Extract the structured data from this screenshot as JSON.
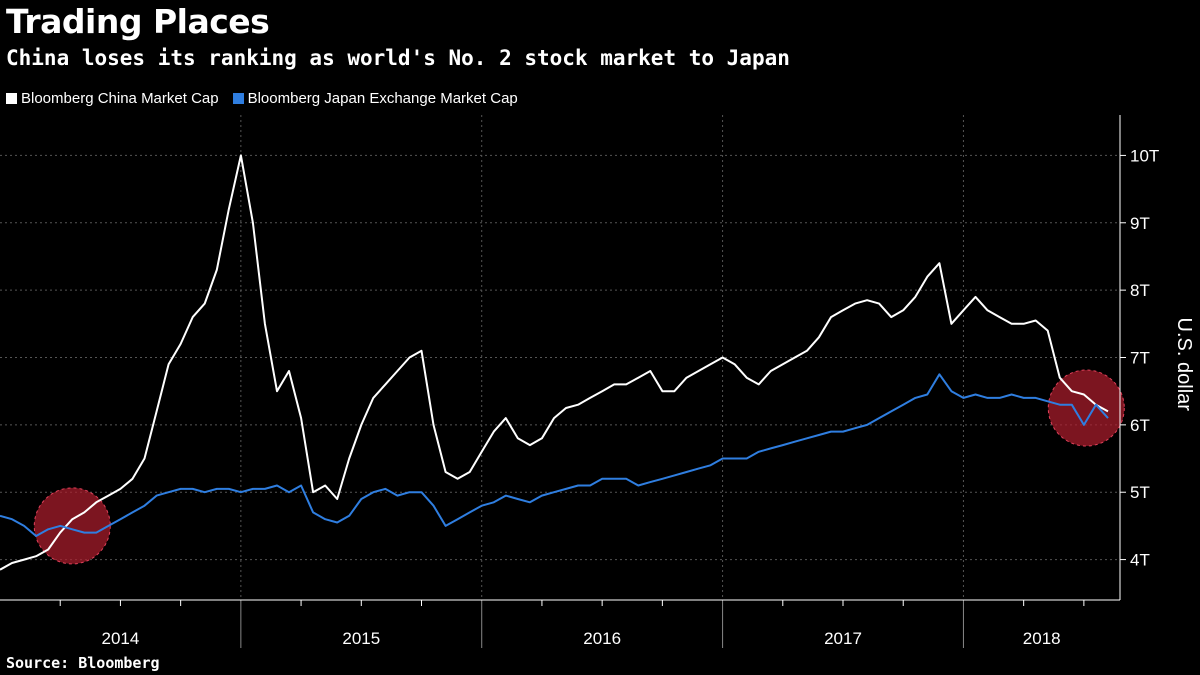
{
  "header": {
    "title": "Trading Places",
    "subtitle": "China loses its ranking as world's No. 2 stock market to Japan"
  },
  "footer": {
    "source": "Source: Bloomberg"
  },
  "chart_data": {
    "type": "line",
    "title": "Trading Places",
    "subtitle": "China loses its ranking as world's No. 2 stock market to Japan",
    "xlabel": "",
    "ylabel": "U.S. dollar",
    "xlim": [
      2014.0,
      2018.65
    ],
    "ylim": [
      3.4,
      10.6
    ],
    "x_ticks": [
      2014,
      2015,
      2016,
      2017,
      2018
    ],
    "x_tick_labels": [
      "2014",
      "2015",
      "2016",
      "2017",
      "2018"
    ],
    "y_ticks": [
      4,
      5,
      6,
      7,
      8,
      9,
      10
    ],
    "y_tick_labels": [
      "4T",
      "5T",
      "6T",
      "7T",
      "8T",
      "9T",
      "10T"
    ],
    "grid": true,
    "legend_position": "top-left",
    "annotations": [
      {
        "type": "circle",
        "x": 2014.3,
        "y": 4.5,
        "color": "#b01e2d"
      },
      {
        "type": "circle",
        "x": 2018.51,
        "y": 6.25,
        "color": "#b01e2d"
      }
    ],
    "series": [
      {
        "name": "Bloomberg China Market Cap",
        "color": "#ffffff",
        "x": [
          2014.0,
          2014.05,
          2014.1,
          2014.15,
          2014.2,
          2014.25,
          2014.3,
          2014.35,
          2014.4,
          2014.45,
          2014.5,
          2014.55,
          2014.6,
          2014.65,
          2014.7,
          2014.75,
          2014.8,
          2014.85,
          2014.9,
          2014.95,
          2015.0,
          2015.05,
          2015.1,
          2015.15,
          2015.2,
          2015.25,
          2015.3,
          2015.35,
          2015.4,
          2015.45,
          2015.5,
          2015.55,
          2015.6,
          2015.65,
          2015.7,
          2015.75,
          2015.8,
          2015.85,
          2015.9,
          2015.95,
          2016.0,
          2016.05,
          2016.1,
          2016.15,
          2016.2,
          2016.25,
          2016.3,
          2016.35,
          2016.4,
          2016.45,
          2016.5,
          2016.55,
          2016.6,
          2016.65,
          2016.7,
          2016.75,
          2016.8,
          2016.85,
          2016.9,
          2016.95,
          2017.0,
          2017.05,
          2017.1,
          2017.15,
          2017.2,
          2017.25,
          2017.3,
          2017.35,
          2017.4,
          2017.45,
          2017.5,
          2017.55,
          2017.6,
          2017.65,
          2017.7,
          2017.75,
          2017.8,
          2017.85,
          2017.9,
          2017.95,
          2018.0,
          2018.05,
          2018.1,
          2018.15,
          2018.2,
          2018.25,
          2018.3,
          2018.35,
          2018.4,
          2018.45,
          2018.5,
          2018.55,
          2018.6
        ],
        "values": [
          3.85,
          3.95,
          4.0,
          4.05,
          4.15,
          4.4,
          4.6,
          4.7,
          4.85,
          4.95,
          5.05,
          5.2,
          5.5,
          6.2,
          6.9,
          7.2,
          7.6,
          7.8,
          8.3,
          9.2,
          10.0,
          9.0,
          7.5,
          6.5,
          6.8,
          6.1,
          5.0,
          5.1,
          4.9,
          5.5,
          6.0,
          6.4,
          6.6,
          6.8,
          7.0,
          7.1,
          6.0,
          5.3,
          5.2,
          5.3,
          5.6,
          5.9,
          6.1,
          5.8,
          5.7,
          5.8,
          6.1,
          6.25,
          6.3,
          6.4,
          6.5,
          6.6,
          6.6,
          6.7,
          6.8,
          6.5,
          6.5,
          6.7,
          6.8,
          6.9,
          7.0,
          6.9,
          6.7,
          6.6,
          6.8,
          6.9,
          7.0,
          7.1,
          7.3,
          7.6,
          7.7,
          7.8,
          7.85,
          7.8,
          7.6,
          7.7,
          7.9,
          8.2,
          8.4,
          7.5,
          7.7,
          7.9,
          7.7,
          7.6,
          7.5,
          7.5,
          7.55,
          7.4,
          6.7,
          6.5,
          6.45,
          6.3,
          6.2
        ]
      },
      {
        "name": "Bloomberg Japan Exchange Market Cap",
        "color": "#2f7ee0",
        "x": [
          2014.0,
          2014.05,
          2014.1,
          2014.15,
          2014.2,
          2014.25,
          2014.3,
          2014.35,
          2014.4,
          2014.45,
          2014.5,
          2014.55,
          2014.6,
          2014.65,
          2014.7,
          2014.75,
          2014.8,
          2014.85,
          2014.9,
          2014.95,
          2015.0,
          2015.05,
          2015.1,
          2015.15,
          2015.2,
          2015.25,
          2015.3,
          2015.35,
          2015.4,
          2015.45,
          2015.5,
          2015.55,
          2015.6,
          2015.65,
          2015.7,
          2015.75,
          2015.8,
          2015.85,
          2015.9,
          2015.95,
          2016.0,
          2016.05,
          2016.1,
          2016.15,
          2016.2,
          2016.25,
          2016.3,
          2016.35,
          2016.4,
          2016.45,
          2016.5,
          2016.55,
          2016.6,
          2016.65,
          2016.7,
          2016.75,
          2016.8,
          2016.85,
          2016.9,
          2016.95,
          2017.0,
          2017.05,
          2017.1,
          2017.15,
          2017.2,
          2017.25,
          2017.3,
          2017.35,
          2017.4,
          2017.45,
          2017.5,
          2017.55,
          2017.6,
          2017.65,
          2017.7,
          2017.75,
          2017.8,
          2017.85,
          2017.9,
          2017.95,
          2018.0,
          2018.05,
          2018.1,
          2018.15,
          2018.2,
          2018.25,
          2018.3,
          2018.35,
          2018.4,
          2018.45,
          2018.5,
          2018.55,
          2018.6
        ],
        "values": [
          4.65,
          4.6,
          4.5,
          4.35,
          4.45,
          4.5,
          4.45,
          4.4,
          4.4,
          4.5,
          4.6,
          4.7,
          4.8,
          4.95,
          5.0,
          5.05,
          5.05,
          5.0,
          5.05,
          5.05,
          5.0,
          5.05,
          5.05,
          5.1,
          5.0,
          5.1,
          4.7,
          4.6,
          4.55,
          4.65,
          4.9,
          5.0,
          5.05,
          4.95,
          5.0,
          5.0,
          4.8,
          4.5,
          4.6,
          4.7,
          4.8,
          4.85,
          4.95,
          4.9,
          4.85,
          4.95,
          5.0,
          5.05,
          5.1,
          5.1,
          5.2,
          5.2,
          5.2,
          5.1,
          5.15,
          5.2,
          5.25,
          5.3,
          5.35,
          5.4,
          5.5,
          5.5,
          5.5,
          5.6,
          5.65,
          5.7,
          5.75,
          5.8,
          5.85,
          5.9,
          5.9,
          5.95,
          6.0,
          6.1,
          6.2,
          6.3,
          6.4,
          6.45,
          6.75,
          6.5,
          6.4,
          6.45,
          6.4,
          6.4,
          6.45,
          6.4,
          6.4,
          6.35,
          6.3,
          6.3,
          6.0,
          6.3,
          6.1
        ]
      }
    ]
  }
}
